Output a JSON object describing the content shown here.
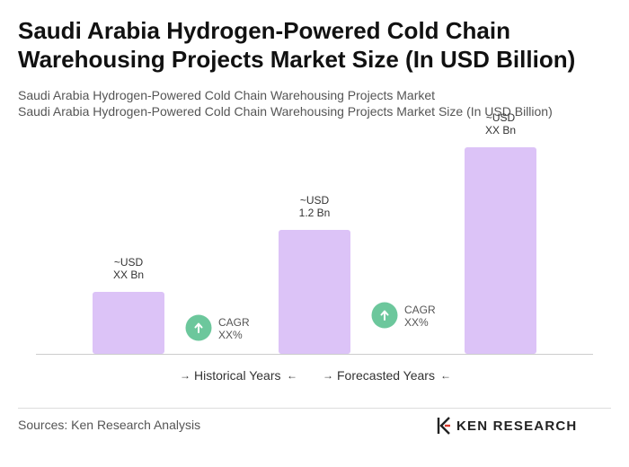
{
  "header": {
    "title": "Saudi Arabia Hydrogen-Powered Cold Chain Warehousing Projects Market Size (In USD Billion)",
    "subtitle_1": "Saudi Arabia Hydrogen-Powered Cold Chain Warehousing Projects Market",
    "subtitle_2": "Saudi Arabia Hydrogen-Powered Cold Chain Warehousing Projects Market Size (In USD Billion)"
  },
  "chart_data": {
    "type": "bar",
    "categories": [
      "",
      "",
      ""
    ],
    "values": [
      0.6,
      1.2,
      2.0
    ],
    "bar_labels": [
      {
        "line1": "~USD",
        "line2": "XX Bn"
      },
      {
        "line1": "~USD",
        "line2": "1.2 Bn"
      },
      {
        "line1": "~USD",
        "line2": "XX Bn"
      }
    ],
    "ylim": [
      0,
      2.0
    ],
    "grid": false,
    "bar_color": "#dcc3f7",
    "cagr": [
      {
        "line1": "CAGR",
        "line2": "XX%"
      },
      {
        "line1": "CAGR",
        "line2": "XX%"
      }
    ],
    "cagr_color": "#6cc79c",
    "legend": [
      {
        "label": "Historical Years"
      },
      {
        "label": "Forecasted Years"
      }
    ]
  },
  "footer": {
    "sources": "Sources: Ken Research Analysis",
    "logo_text": "KEN RESEARCH"
  }
}
